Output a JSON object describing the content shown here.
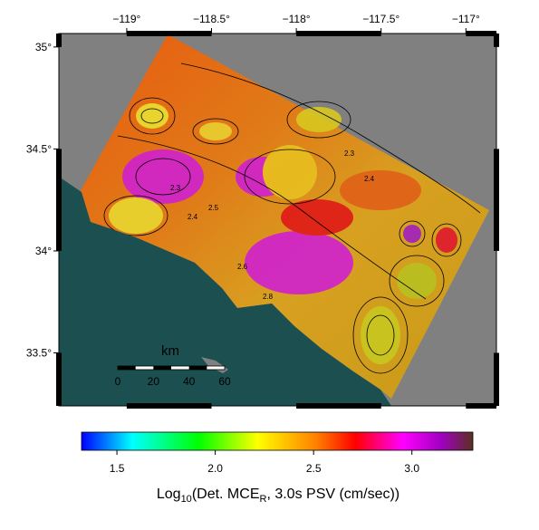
{
  "map": {
    "xlim": [
      -119.4,
      -116.82
    ],
    "ylim": [
      33.24,
      35.066
    ],
    "xticks": [
      {
        "value": -119,
        "label": "−119°"
      },
      {
        "value": -118.5,
        "label": "−118.5°"
      },
      {
        "value": -118,
        "label": "−118°"
      },
      {
        "value": -117.5,
        "label": "−117.5°"
      },
      {
        "value": -117,
        "label": "−117°"
      }
    ],
    "yticks": [
      {
        "value": 35,
        "label": "35°"
      },
      {
        "value": 34.5,
        "label": "34.5°"
      },
      {
        "value": 34,
        "label": "34°"
      },
      {
        "value": 33.5,
        "label": "33.5°"
      }
    ],
    "contour_labels": [
      "2.3",
      "2.4",
      "2.5",
      "2.6",
      "2.8",
      "2.3",
      "2.4"
    ]
  },
  "scale_bar": {
    "title": "km",
    "labels": [
      "0",
      "20",
      "40",
      "60"
    ]
  },
  "colorbar": {
    "lim": [
      1.32,
      3.31
    ],
    "ticks": [
      1.5,
      {
        "value": 2,
        "label": "2.0"
      },
      2.5,
      {
        "value": 3,
        "label": "3.0"
      }
    ],
    "label_parts": [
      "Log",
      "10",
      "(Det. MCE",
      "R",
      ", 3.0s PSV (cm/sec))"
    ]
  }
}
